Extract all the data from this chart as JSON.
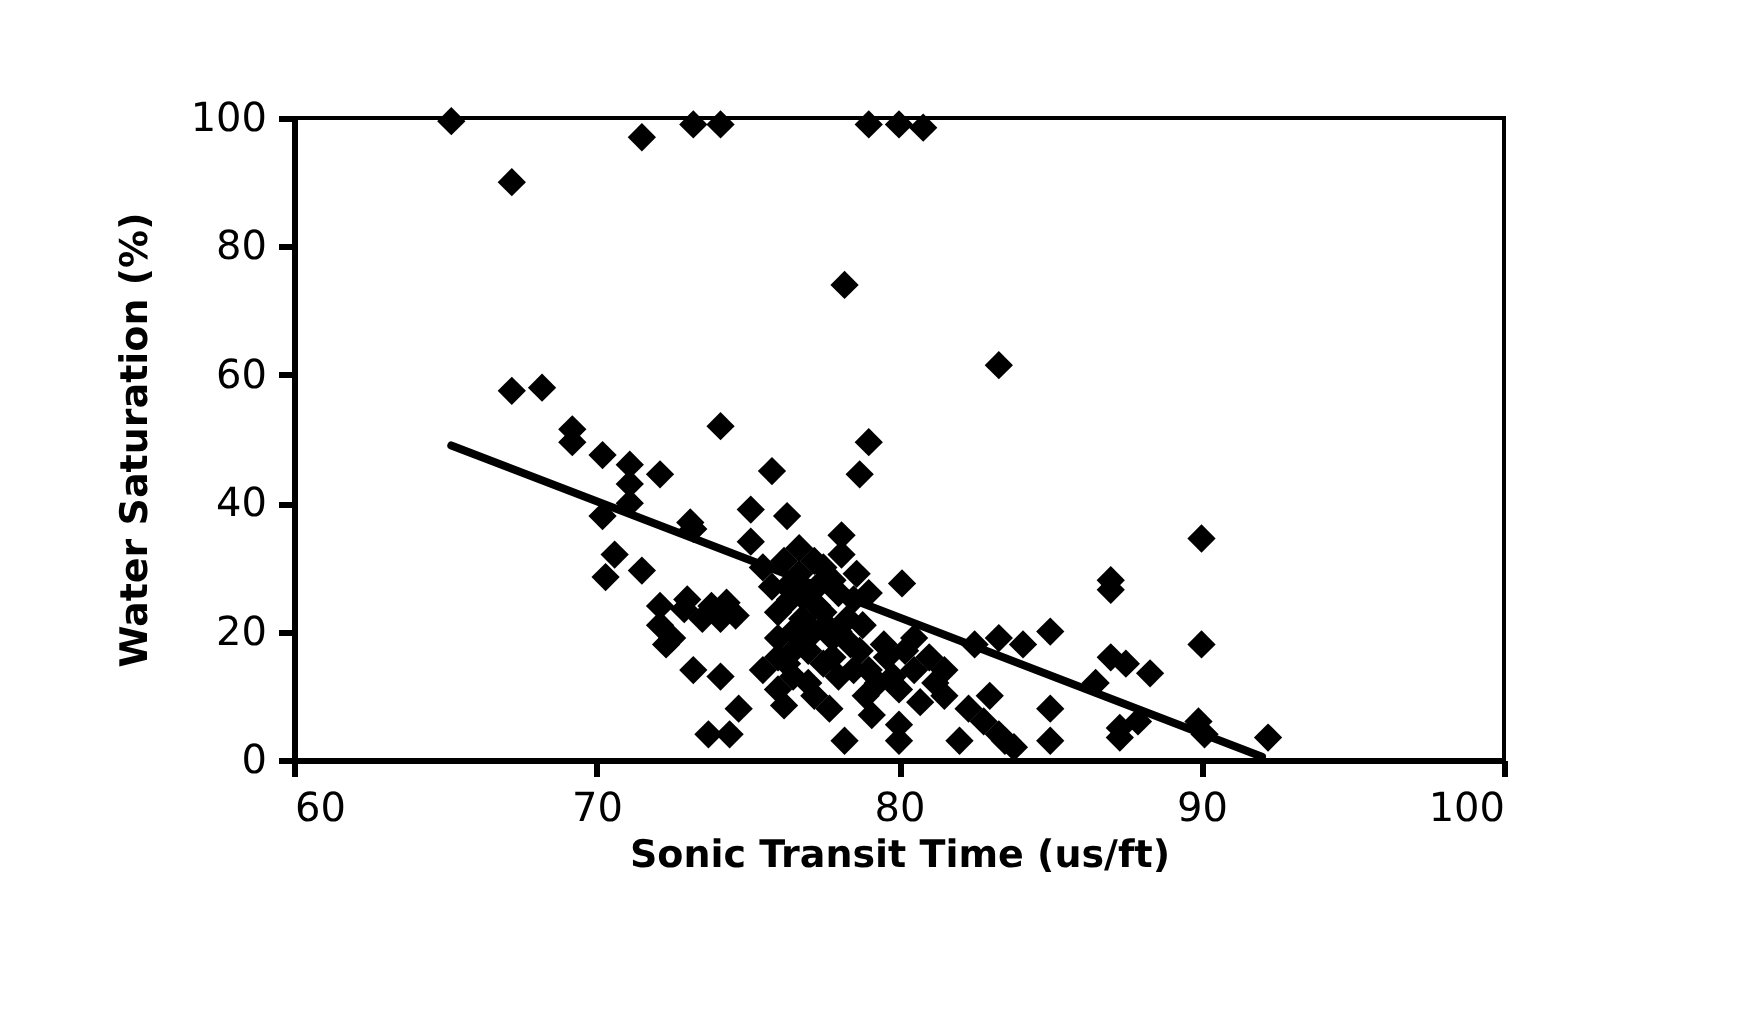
{
  "chart_data": {
    "type": "scatter",
    "xlabel": "Sonic Transit Time (us/ft)",
    "ylabel": "Water Saturation (%)",
    "xlim": [
      60,
      100
    ],
    "ylim": [
      0,
      100
    ],
    "xticks": [
      60,
      70,
      80,
      90,
      100
    ],
    "yticks": [
      0,
      20,
      40,
      60,
      80,
      100
    ],
    "grid": false,
    "marker": "diamond",
    "series": [
      {
        "color": "#000000",
        "x": [
          65.2,
          67.2,
          71.5,
          73.2,
          74.1,
          79,
          80,
          80.8,
          78.2,
          83.3,
          67.2,
          68.2,
          69.2,
          69.2,
          74.1,
          79,
          78.7,
          70.2,
          71.1,
          71.1,
          71.1,
          72.1,
          70.2,
          73.1,
          73.2,
          75.8,
          75.1,
          76.3,
          75.1,
          76.2,
          77.2,
          78.1,
          78.1,
          70.3,
          70.6,
          71.5,
          72.1,
          72.1,
          72.5,
          72.9,
          73.2,
          73.8,
          74.1,
          74.1,
          74.7,
          73.7,
          74.4,
          75.5,
          76,
          76.5,
          76.4,
          76.7,
          76,
          76.2,
          77.2,
          77.5,
          77,
          77.3,
          78,
          78.3,
          78.4,
          78,
          78.7,
          77.7,
          78.2,
          78.9,
          79.1,
          79.3,
          79.6,
          79.8,
          80,
          80,
          80,
          80.1,
          80.2,
          80.5,
          80.7,
          81,
          81.2,
          81.5,
          82,
          82.3,
          82.5,
          82.8,
          83,
          83.3,
          83.3,
          83.8,
          83.5,
          84.1,
          85,
          85,
          85,
          86.5,
          87,
          87,
          87,
          87.3,
          87.5,
          87.3,
          87.9,
          88.3,
          90,
          90,
          89.9,
          90.1,
          92.2,
          75.8,
          76,
          76.5,
          76.8,
          77.5,
          77.8,
          77.8,
          78.5,
          78.8,
          76.5,
          77.2,
          79.5,
          80.5,
          81.5,
          79,
          75.5,
          76.7,
          72.3,
          73.5,
          74.3,
          74.6,
          73,
          76.3,
          76.8,
          77.3,
          77.6,
          78,
          77,
          76.3,
          77.8,
          78.5,
          76,
          77.5,
          78.6,
          79,
          76.9
        ],
        "values": [
          99.5,
          90,
          97,
          99,
          99,
          99,
          99,
          98.5,
          74,
          61.5,
          57.5,
          58,
          51.5,
          49.5,
          52,
          49.5,
          44.5,
          47.5,
          46,
          43,
          40,
          44.5,
          38,
          37,
          36,
          45,
          39,
          38,
          34,
          31,
          31,
          35,
          32,
          28.5,
          32,
          29.5,
          24,
          21,
          19,
          23.5,
          14,
          24,
          22,
          13,
          8,
          4,
          4,
          14,
          16,
          20,
          25,
          29,
          23,
          8.5,
          20,
          15,
          12,
          27,
          26,
          22,
          18,
          13,
          17,
          8,
          3,
          10,
          7,
          12,
          16,
          13,
          11,
          5.5,
          3,
          27.5,
          17,
          14,
          9,
          16,
          12,
          10,
          3,
          8,
          18,
          6,
          10,
          19,
          4,
          2,
          3,
          18,
          20,
          8,
          3,
          12,
          28,
          26.5,
          16,
          5,
          15,
          3.5,
          6,
          13.5,
          34.5,
          18,
          6,
          4,
          3.5,
          27,
          19,
          17,
          22,
          23,
          28,
          19,
          25,
          21,
          13,
          10,
          18,
          19,
          14,
          14,
          30,
          33,
          18,
          22,
          24.5,
          22.5,
          25,
          27,
          25.5,
          24,
          21,
          20,
          17,
          15,
          16,
          14,
          11,
          30,
          29,
          26,
          19
        ]
      },
      {
        "type": "line",
        "color": "#000000",
        "marker": "none",
        "line_style": "solid",
        "x": [
          65.2,
          92
        ],
        "values": [
          49,
          0.5
        ]
      }
    ]
  }
}
